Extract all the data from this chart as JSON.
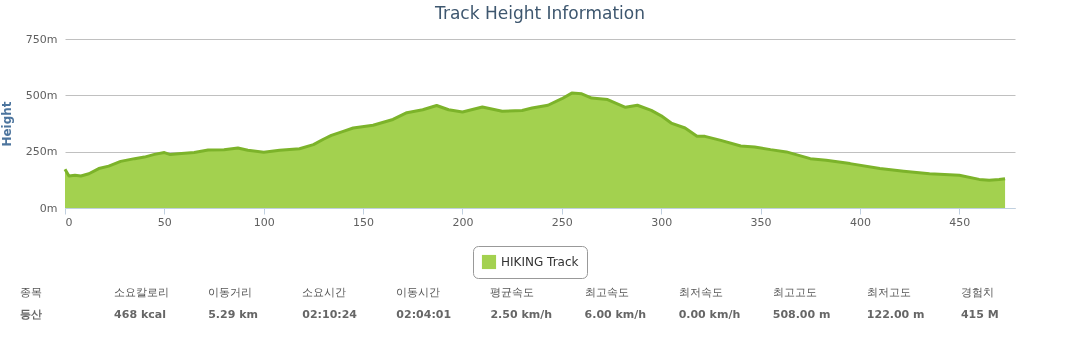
{
  "chart_data": {
    "type": "area",
    "title": "Track Height Information",
    "ylabel": "Height",
    "xlim": [
      0,
      478
    ],
    "xticks": [
      0,
      50,
      100,
      150,
      200,
      250,
      300,
      350,
      400,
      450
    ],
    "ylim": [
      0,
      750
    ],
    "yticks": [
      {
        "value": 0,
        "label": "0m"
      },
      {
        "value": 250,
        "label": "250m"
      },
      {
        "value": 500,
        "label": "500m"
      },
      {
        "value": 750,
        "label": "750m"
      }
    ],
    "grid": "y",
    "legend": "bottom",
    "x": [
      0,
      2,
      5,
      8,
      12,
      17,
      22,
      28,
      35,
      40,
      45,
      50,
      53,
      57,
      65,
      72,
      80,
      87,
      92,
      100,
      108,
      118,
      125,
      130,
      134,
      140,
      145,
      155,
      165,
      172,
      180,
      187,
      193,
      200,
      210,
      220,
      230,
      235,
      243,
      250,
      255,
      260,
      265,
      273,
      282,
      288,
      295,
      300,
      305,
      312,
      318,
      322,
      330,
      340,
      347,
      355,
      363,
      375,
      383,
      395,
      410,
      422,
      435,
      450,
      460,
      465,
      470,
      473
    ],
    "series": [
      {
        "name": "HIKING Track",
        "color": "#a3d14f",
        "values": [
          172,
          142,
          145,
          142,
          152,
          175,
          186,
          207,
          219,
          226,
          238,
          246,
          237,
          241,
          246,
          257,
          259,
          266,
          256,
          247,
          256,
          263,
          281,
          305,
          322,
          340,
          355,
          367,
          393,
          423,
          436,
          455,
          436,
          426,
          448,
          429,
          433,
          444,
          456,
          485,
          510,
          507,
          488,
          481,
          447,
          456,
          433,
          409,
          377,
          355,
          318,
          318,
          300,
          275,
          271,
          259,
          249,
          219,
          212,
          197,
          175,
          163,
          152,
          145,
          127,
          123,
          126,
          130
        ]
      }
    ],
    "annotations": [
      "종목",
      "등산",
      "소요칼로리",
      "468 kcal",
      "이동거리",
      "5.29 km",
      "소요시간",
      "02:10:24",
      "이동시간",
      "02:04:01",
      "평균속도",
      "2.50 km/h",
      "최고속도",
      "6.00 km/h",
      "최저속도",
      "0.00 km/h",
      "최고고도",
      "508.00 m",
      "최저고도",
      "122.00 m",
      "경험치",
      "415 M"
    ]
  }
}
